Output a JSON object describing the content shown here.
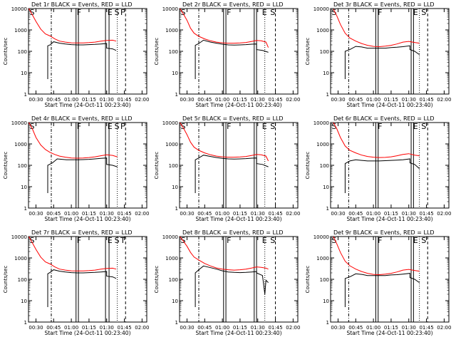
{
  "chart_data": [
    {
      "type": "line",
      "title": "Det 1r BLACK = Events, RED = LLD",
      "xlabel": "Start Time (24-Oct-11 00:23:40)",
      "ylabel": "Counts/sec",
      "yscale": "log",
      "ylim": [
        1,
        10000
      ],
      "xlim_min": [
        23.67,
        124
      ],
      "xticks": [
        "00:30",
        "00:45",
        "01:00",
        "01:15",
        "01:30",
        "01:45",
        "02:00"
      ],
      "yticks": [
        "1",
        "10",
        "100",
        "1000",
        "10000"
      ],
      "markers": [
        "S",
        "F",
        "E",
        "S",
        "F"
      ],
      "series": [
        {
          "name": "Events",
          "color": "#000000",
          "x_min": [
            40,
            40,
            42,
            45,
            50,
            55,
            60,
            65,
            70,
            75,
            80,
            85,
            90,
            90,
            95,
            98
          ],
          "y": [
            5,
            180,
            200,
            280,
            240,
            220,
            205,
            200,
            200,
            205,
            210,
            220,
            230,
            140,
            130,
            110
          ]
        },
        {
          "name": "LLD",
          "color": "#ff0000",
          "x_min": [
            24,
            27,
            30,
            34,
            38,
            42,
            46,
            50,
            55,
            60,
            65,
            70,
            75,
            80,
            85,
            90,
            95,
            98
          ],
          "y": [
            10000,
            5000,
            2500,
            1100,
            650,
            520,
            380,
            300,
            270,
            250,
            245,
            245,
            255,
            270,
            300,
            320,
            330,
            300
          ]
        }
      ]
    },
    {
      "type": "line",
      "title": "Det 2r BLACK = Events, RED = LLD",
      "xlabel": "Start Time (24-Oct-11 00:23:40)",
      "ylabel": "Counts/sec",
      "yscale": "log",
      "ylim": [
        1,
        10000
      ],
      "xlim_min": [
        23.67,
        124
      ],
      "xticks": [
        "00:30",
        "00:45",
        "01:00",
        "01:15",
        "01:30",
        "01:45",
        "02:00"
      ],
      "yticks": [
        "1",
        "10",
        "100",
        "1000",
        "10000"
      ],
      "markers": [
        "S",
        "F",
        "E",
        "S"
      ],
      "series": [
        {
          "name": "Events",
          "color": "#000000",
          "x_min": [
            37,
            37,
            40,
            44,
            50,
            55,
            60,
            65,
            70,
            75,
            80,
            85,
            89,
            89,
            94,
            99
          ],
          "y": [
            5,
            190,
            230,
            330,
            270,
            240,
            215,
            200,
            195,
            200,
            205,
            215,
            220,
            120,
            110,
            90
          ]
        },
        {
          "name": "LLD",
          "color": "#ff0000",
          "x_min": [
            24,
            27,
            30,
            33,
            36,
            40,
            45,
            50,
            55,
            60,
            65,
            70,
            75,
            80,
            85,
            89,
            93,
            97,
            99
          ],
          "y": [
            10000,
            5500,
            2800,
            1200,
            700,
            500,
            380,
            310,
            270,
            250,
            240,
            240,
            245,
            260,
            290,
            320,
            310,
            270,
            150
          ]
        }
      ]
    },
    {
      "type": "line",
      "title": "Det 3r BLACK = Events, RED = LLD",
      "xlabel": "Start Time (24-Oct-11 00:23:40)",
      "ylabel": "Counts/sec",
      "yscale": "log",
      "ylim": [
        1,
        10000
      ],
      "xlim_min": [
        23.67,
        124
      ],
      "xticks": [
        "00:30",
        "00:45",
        "01:00",
        "01:15",
        "01:30",
        "01:45",
        "02:00"
      ],
      "yticks": [
        "1",
        "10",
        "100",
        "1000",
        "10000"
      ],
      "markers": [
        "S",
        "F",
        "E",
        "S"
      ],
      "series": [
        {
          "name": "Events",
          "color": "#000000",
          "x_min": [
            36,
            36,
            40,
            45,
            50,
            55,
            60,
            65,
            70,
            75,
            80,
            85,
            91,
            91,
            95,
            99
          ],
          "y": [
            5,
            100,
            120,
            170,
            160,
            140,
            140,
            140,
            140,
            150,
            155,
            165,
            180,
            120,
            100,
            70
          ]
        },
        {
          "name": "LLD",
          "color": "#ff0000",
          "x_min": [
            26,
            29,
            32,
            36,
            40,
            45,
            50,
            55,
            60,
            65,
            70,
            75,
            80,
            85,
            90,
            95,
            99
          ],
          "y": [
            9500,
            4500,
            1800,
            700,
            420,
            300,
            230,
            190,
            170,
            165,
            175,
            190,
            220,
            270,
            290,
            260,
            240
          ]
        }
      ]
    },
    {
      "type": "line",
      "title": "Det 4r BLACK = Events, RED = LLD",
      "xlabel": "Start Time (24-Oct-11 00:23:40)",
      "ylabel": "Counts/sec",
      "yscale": "log",
      "ylim": [
        1,
        10000
      ],
      "xlim_min": [
        23.67,
        124
      ],
      "xticks": [
        "00:30",
        "00:45",
        "01:00",
        "01:15",
        "01:30",
        "01:45",
        "02:00"
      ],
      "yticks": [
        "1",
        "10",
        "100",
        "1000",
        "10000"
      ],
      "markers": [
        "S",
        "F",
        "E",
        "S",
        "F"
      ],
      "series": [
        {
          "name": "Events",
          "color": "#000000",
          "x_min": [
            40,
            40,
            44,
            48,
            52,
            56,
            60,
            65,
            70,
            75,
            80,
            85,
            90,
            90,
            95,
            99
          ],
          "y": [
            5,
            100,
            130,
            200,
            190,
            180,
            180,
            180,
            185,
            190,
            200,
            210,
            220,
            110,
            100,
            85
          ]
        },
        {
          "name": "LLD",
          "color": "#ff0000",
          "x_min": [
            24,
            27,
            30,
            34,
            38,
            42,
            46,
            50,
            55,
            60,
            65,
            70,
            75,
            80,
            85,
            90,
            95,
            99
          ],
          "y": [
            10000,
            5000,
            2000,
            900,
            550,
            400,
            320,
            270,
            240,
            220,
            215,
            220,
            230,
            250,
            280,
            310,
            290,
            250
          ]
        }
      ]
    },
    {
      "type": "line",
      "title": "Det 5r BLACK = Events, RED = LLD",
      "xlabel": "Start Time (24-Oct-11 00:23:40)",
      "ylabel": "Counts/sec",
      "yscale": "log",
      "ylim": [
        1,
        10000
      ],
      "xlim_min": [
        23.67,
        124
      ],
      "xticks": [
        "00:30",
        "00:45",
        "01:00",
        "01:15",
        "01:30",
        "01:45",
        "02:00"
      ],
      "yticks": [
        "1",
        "10",
        "100",
        "1000",
        "10000"
      ],
      "markers": [
        "S",
        "F",
        "E",
        "S"
      ],
      "series": [
        {
          "name": "Events",
          "color": "#000000",
          "x_min": [
            37,
            37,
            40,
            44,
            50,
            55,
            60,
            65,
            70,
            75,
            80,
            85,
            89,
            89,
            94,
            99
          ],
          "y": [
            5,
            180,
            220,
            300,
            260,
            230,
            210,
            200,
            195,
            200,
            205,
            215,
            220,
            120,
            110,
            85
          ]
        },
        {
          "name": "LLD",
          "color": "#ff0000",
          "x_min": [
            24,
            27,
            30,
            33,
            36,
            40,
            45,
            50,
            55,
            60,
            65,
            70,
            75,
            80,
            85,
            89,
            93,
            97,
            99
          ],
          "y": [
            10000,
            5500,
            2700,
            1200,
            700,
            500,
            380,
            310,
            270,
            250,
            240,
            240,
            245,
            260,
            290,
            320,
            310,
            270,
            160
          ]
        }
      ]
    },
    {
      "type": "line",
      "title": "Det 6r BLACK = Events, RED = LLD",
      "xlabel": "Start Time (24-Oct-11 00:23:40)",
      "ylabel": "Counts/sec",
      "yscale": "log",
      "ylim": [
        1,
        10000
      ],
      "xlim_min": [
        23.67,
        124
      ],
      "xticks": [
        "00:30",
        "00:45",
        "01:00",
        "01:15",
        "01:30",
        "01:45",
        "02:00"
      ],
      "yticks": [
        "1",
        "10",
        "100",
        "1000",
        "10000"
      ],
      "markers": [
        "S",
        "F",
        "E",
        "S"
      ],
      "series": [
        {
          "name": "Events",
          "color": "#000000",
          "x_min": [
            36,
            36,
            40,
            45,
            50,
            55,
            60,
            65,
            70,
            75,
            80,
            85,
            91,
            91,
            95,
            99
          ],
          "y": [
            5,
            120,
            160,
            180,
            170,
            160,
            160,
            160,
            165,
            170,
            175,
            180,
            200,
            130,
            110,
            70
          ]
        },
        {
          "name": "LLD",
          "color": "#ff0000",
          "x_min": [
            26,
            29,
            32,
            36,
            40,
            45,
            50,
            55,
            60,
            65,
            70,
            75,
            80,
            85,
            90,
            95,
            99
          ],
          "y": [
            10000,
            5000,
            2000,
            800,
            500,
            380,
            300,
            260,
            240,
            230,
            235,
            250,
            280,
            320,
            350,
            300,
            280
          ]
        }
      ]
    },
    {
      "type": "line",
      "title": "Det 7r BLACK = Events, RED = LLD",
      "xlabel": "Start Time (24-Oct-11 00:23:40)",
      "ylabel": "Counts/sec",
      "yscale": "log",
      "ylim": [
        1,
        10000
      ],
      "xlim_min": [
        23.67,
        124
      ],
      "xticks": [
        "00:30",
        "00:45",
        "01:00",
        "01:15",
        "01:30",
        "01:45",
        "02:00"
      ],
      "yticks": [
        "1",
        "10",
        "100",
        "1000",
        "10000"
      ],
      "markers": [
        "S",
        "F",
        "E",
        "S",
        "T"
      ],
      "series": [
        {
          "name": "Events",
          "color": "#000000",
          "x_min": [
            40,
            40,
            42,
            45,
            50,
            55,
            60,
            65,
            70,
            75,
            80,
            85,
            90,
            90,
            95,
            98
          ],
          "y": [
            5,
            180,
            210,
            280,
            240,
            220,
            205,
            200,
            200,
            205,
            210,
            220,
            230,
            140,
            130,
            110
          ]
        },
        {
          "name": "LLD",
          "color": "#ff0000",
          "x_min": [
            24,
            27,
            30,
            34,
            38,
            42,
            46,
            50,
            55,
            60,
            65,
            70,
            75,
            80,
            85,
            90,
            95,
            98
          ],
          "y": [
            10000,
            5000,
            2500,
            1100,
            650,
            520,
            380,
            300,
            270,
            250,
            245,
            245,
            255,
            270,
            300,
            320,
            330,
            300
          ]
        }
      ]
    },
    {
      "type": "line",
      "title": "Det 8r BLACK = Events, RED = LLD",
      "xlabel": "Start Time (24-Oct-11 00:23:40)",
      "ylabel": "Counts/sec",
      "yscale": "log",
      "ylim": [
        1,
        10000
      ],
      "xlim_min": [
        23.67,
        124
      ],
      "xticks": [
        "00:30",
        "00:45",
        "01:00",
        "01:15",
        "01:30",
        "01:45",
        "02:00"
      ],
      "yticks": [
        "1",
        "10",
        "100",
        "1000",
        "10000"
      ],
      "markers": [
        "S",
        "F",
        "E",
        "S"
      ],
      "series": [
        {
          "name": "Events",
          "color": "#000000",
          "x_min": [
            37,
            37,
            40,
            44,
            50,
            55,
            60,
            65,
            70,
            75,
            80,
            85,
            89,
            89,
            94,
            96,
            97,
            99
          ],
          "y": [
            5,
            200,
            280,
            420,
            350,
            300,
            250,
            220,
            210,
            205,
            210,
            220,
            230,
            200,
            150,
            20,
            90,
            70
          ]
        },
        {
          "name": "LLD",
          "color": "#ff0000",
          "x_min": [
            24,
            27,
            30,
            33,
            36,
            40,
            45,
            50,
            55,
            60,
            65,
            70,
            75,
            80,
            85,
            89,
            93,
            97,
            99
          ],
          "y": [
            10000,
            6000,
            3500,
            1800,
            1100,
            800,
            550,
            420,
            340,
            300,
            280,
            270,
            280,
            300,
            340,
            380,
            360,
            330,
            300
          ]
        }
      ]
    },
    {
      "type": "line",
      "title": "Det 9r BLACK = Events, RED = LLD",
      "xlabel": "Start Time (24-Oct-11 00:23:40)",
      "ylabel": "Counts/sec",
      "yscale": "log",
      "ylim": [
        1,
        10000
      ],
      "xlim_min": [
        23.67,
        124
      ],
      "xticks": [
        "00:30",
        "00:45",
        "01:00",
        "01:15",
        "01:30",
        "01:45",
        "02:00"
      ],
      "yticks": [
        "1",
        "10",
        "100",
        "1000",
        "10000"
      ],
      "markers": [
        "S",
        "F",
        "E",
        "S"
      ],
      "series": [
        {
          "name": "Events",
          "color": "#000000",
          "x_min": [
            36,
            36,
            40,
            45,
            50,
            55,
            60,
            65,
            70,
            75,
            80,
            85,
            91,
            91,
            95,
            99
          ],
          "y": [
            5,
            110,
            130,
            180,
            170,
            150,
            150,
            150,
            150,
            160,
            165,
            175,
            190,
            120,
            100,
            70
          ]
        },
        {
          "name": "LLD",
          "color": "#ff0000",
          "x_min": [
            26,
            29,
            32,
            36,
            40,
            45,
            50,
            55,
            60,
            65,
            70,
            75,
            80,
            85,
            90,
            95,
            99
          ],
          "y": [
            10000,
            4500,
            1800,
            700,
            430,
            300,
            230,
            190,
            170,
            165,
            175,
            190,
            220,
            270,
            290,
            260,
            240
          ]
        }
      ]
    }
  ]
}
